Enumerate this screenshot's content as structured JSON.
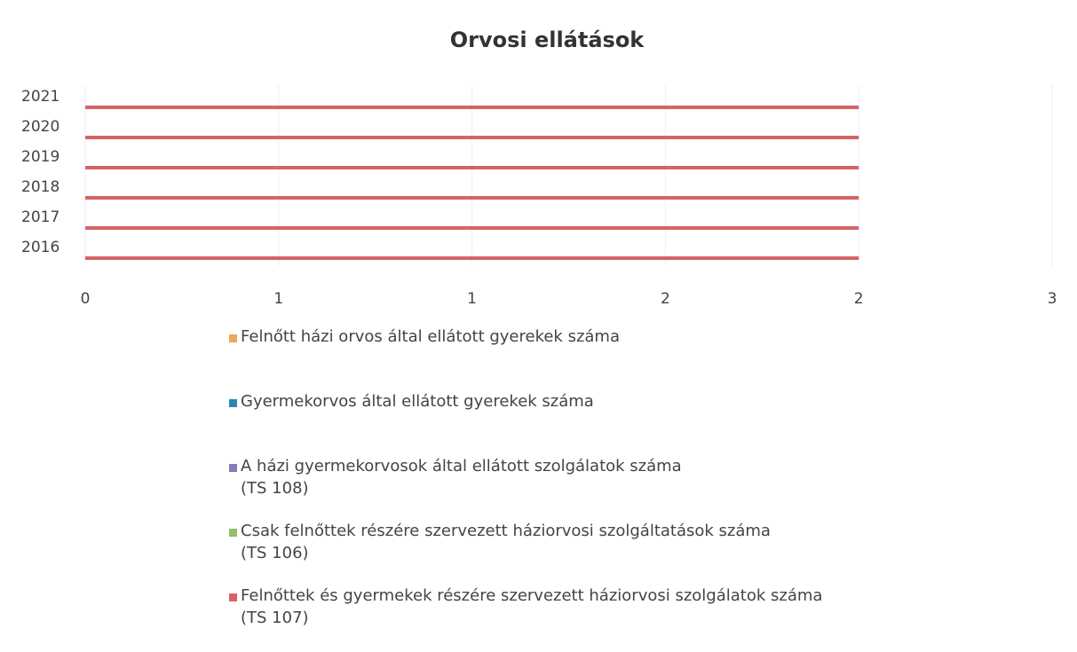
{
  "chart_data": {
    "type": "bar",
    "stacked": true,
    "orientation": "horizontal",
    "title": "Orvosi ellátások",
    "categories": [
      "2016",
      "2017",
      "2018",
      "2019",
      "2020",
      "2021"
    ],
    "series": [
      {
        "name": "Felnőtt házi orvos által ellátott gyerekek száma",
        "color": "#f4a460",
        "values": [
          0,
          0,
          0,
          0,
          0,
          0
        ]
      },
      {
        "name": "Gyermekorvos által ellátott gyerekek száma",
        "color": "#2e86b0",
        "values": [
          0,
          0,
          0,
          0,
          0,
          0
        ]
      },
      {
        "name": "A házi gyermekorvosok által ellátott szolgálatok száma\n(TS 108)",
        "color": "#8a78b8",
        "values": [
          0,
          0,
          0,
          0,
          0,
          0
        ]
      },
      {
        "name": "Csak felnőttek részére szervezett háziorvosi szolgáltatások száma\n(TS 106)",
        "color": "#93c06a",
        "values": [
          0,
          0,
          0,
          0,
          0,
          0
        ]
      },
      {
        "name": "Felnőttek és gyermekek részére szervezett háziorvosi szolgálatok száma\n(TS 107)",
        "color": "#d46466",
        "values": [
          2,
          2,
          2,
          2,
          2,
          2
        ]
      }
    ],
    "xlim": [
      0,
      2.5
    ],
    "xticks": [
      0,
      {
        "value": 0.5,
        "label": "1"
      },
      1,
      {
        "value": 1.5,
        "label": "2"
      },
      2,
      {
        "value": 2.5,
        "label": "3"
      }
    ],
    "grid": true
  }
}
